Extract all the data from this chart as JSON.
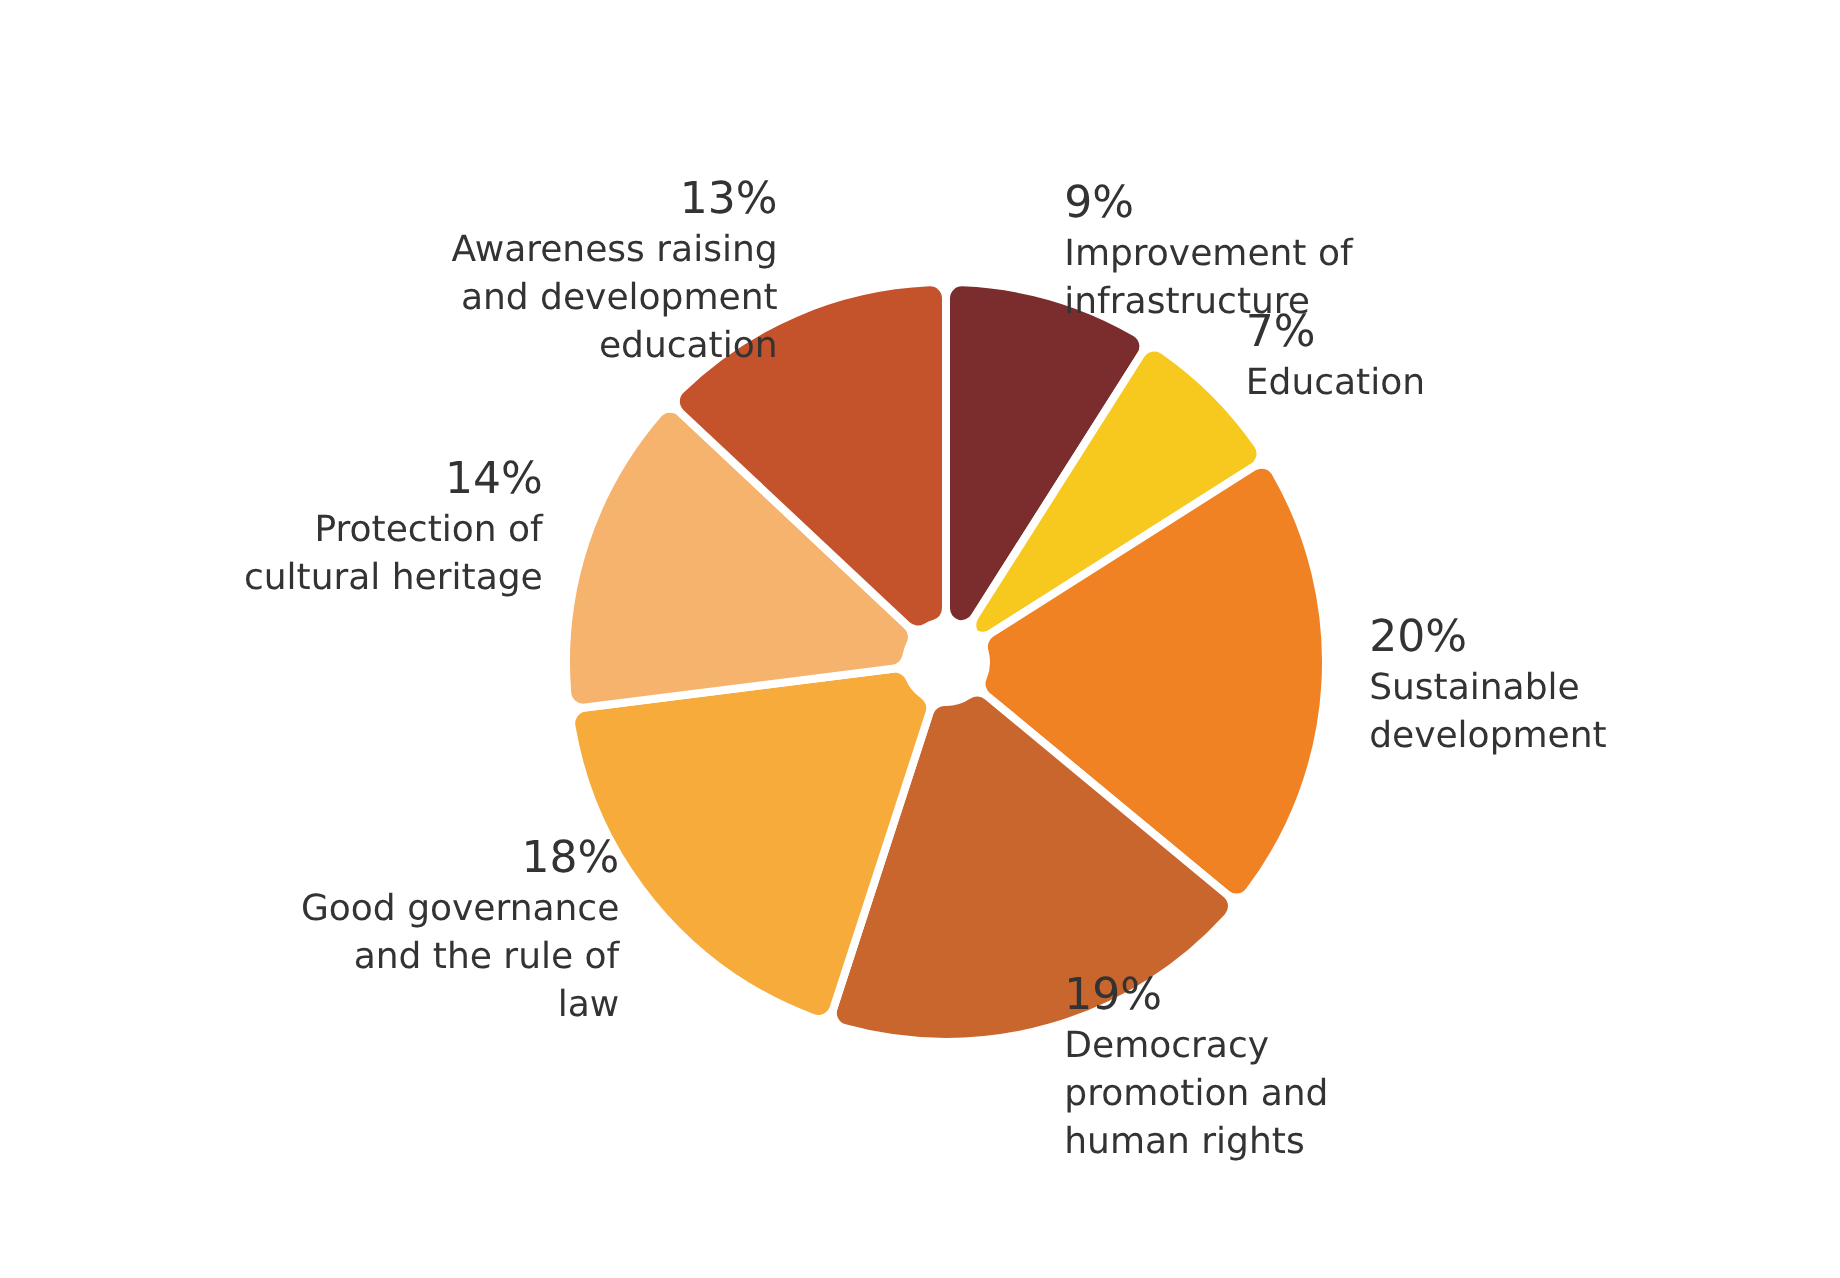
{
  "chart_data": {
    "type": "pie",
    "categories": [
      "Improvement of infrastructure",
      "Education",
      "Sustainable development",
      "Democracy promotion and human rights",
      "Good governance and the rule of law",
      "Protection of cultural heritage",
      "Awareness raising and development education"
    ],
    "values": [
      9,
      7,
      20,
      19,
      18,
      14,
      13
    ],
    "value_labels": [
      "9%",
      "7%",
      "20%",
      "19%",
      "18%",
      "14%",
      "13%"
    ],
    "colors": [
      "#7b2d2d",
      "#f7c81e",
      "#f08224",
      "#c9662e",
      "#f7ab3a",
      "#f5b36e",
      "#c4532c"
    ]
  }
}
